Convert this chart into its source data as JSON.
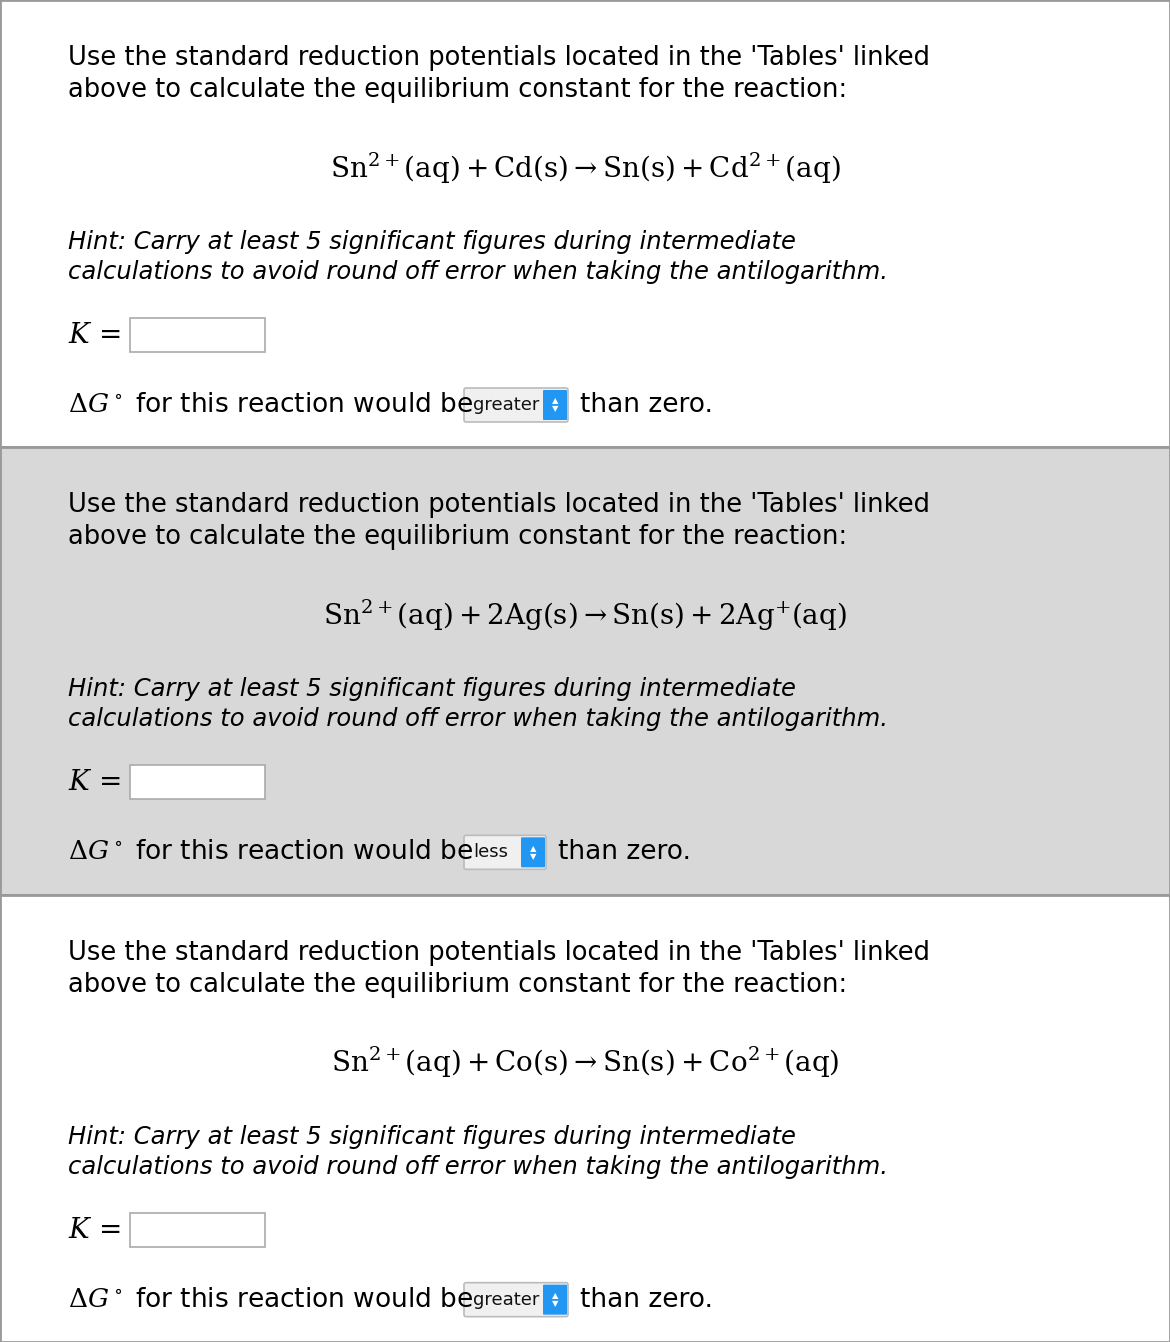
{
  "bg_color": "#ffffff",
  "panel_bg_colors": [
    "#ffffff",
    "#e0e0e0",
    "#ffffff"
  ],
  "border_color": "#999999",
  "panels": [
    {
      "intro_line1": "Use the standard reduction potentials located in the 'Tables' linked",
      "intro_line2": "above to calculate the equilibrium constant for the reaction:",
      "equation": "$\\mathrm{Sn}^{2+}(\\mathrm{aq}) + \\mathrm{Cd}(\\mathrm{s}) \\rightarrow \\mathrm{Sn}(\\mathrm{s}) + \\mathrm{Cd}^{2+}(\\mathrm{aq})$",
      "hint_line1": "Hint: Carry at least 5 significant figures during intermediate",
      "hint_line2": "calculations to avoid round off error when taking the antilogarithm.",
      "dropdown_text": "greater",
      "dg_sign": "greater"
    },
    {
      "intro_line1": "Use the standard reduction potentials located in the 'Tables' linked",
      "intro_line2": "above to calculate the equilibrium constant for the reaction:",
      "equation": "$\\mathrm{Sn}^{2+}(\\mathrm{aq}) + 2\\mathrm{Ag}(\\mathrm{s}) \\rightarrow \\mathrm{Sn}(\\mathrm{s}) + 2\\mathrm{Ag}^{+}(\\mathrm{aq})$",
      "hint_line1": "Hint: Carry at least 5 significant figures during intermediate",
      "hint_line2": "calculations to avoid round off error when taking the antilogarithm.",
      "dropdown_text": "less",
      "dg_sign": "less"
    },
    {
      "intro_line1": "Use the standard reduction potentials located in the 'Tables' linked",
      "intro_line2": "above to calculate the equilibrium constant for the reaction:",
      "equation": "$\\mathrm{Sn}^{2+}(\\mathrm{aq}) + \\mathrm{Co}(\\mathrm{s}) \\rightarrow \\mathrm{Sn}(\\mathrm{s}) + \\mathrm{Co}^{2+}(\\mathrm{aq})$",
      "hint_line1": "Hint: Carry at least 5 significant figures during intermediate",
      "hint_line2": "calculations to avoid round off error when taking the antilogarithm.",
      "dropdown_text": "greater",
      "dg_sign": "greater"
    }
  ],
  "dropdown_bg": "#2196f3",
  "input_box_color": "#ffffff",
  "input_box_border": "#aaaaaa",
  "text_color": "#000000",
  "intro_fontsize": 18.5,
  "equation_fontsize": 20,
  "hint_fontsize": 17.5,
  "k_fontsize": 20,
  "dg_fontsize": 19,
  "dropdown_fontsize": 13,
  "figsize": [
    11.7,
    13.42
  ],
  "dpi": 100
}
